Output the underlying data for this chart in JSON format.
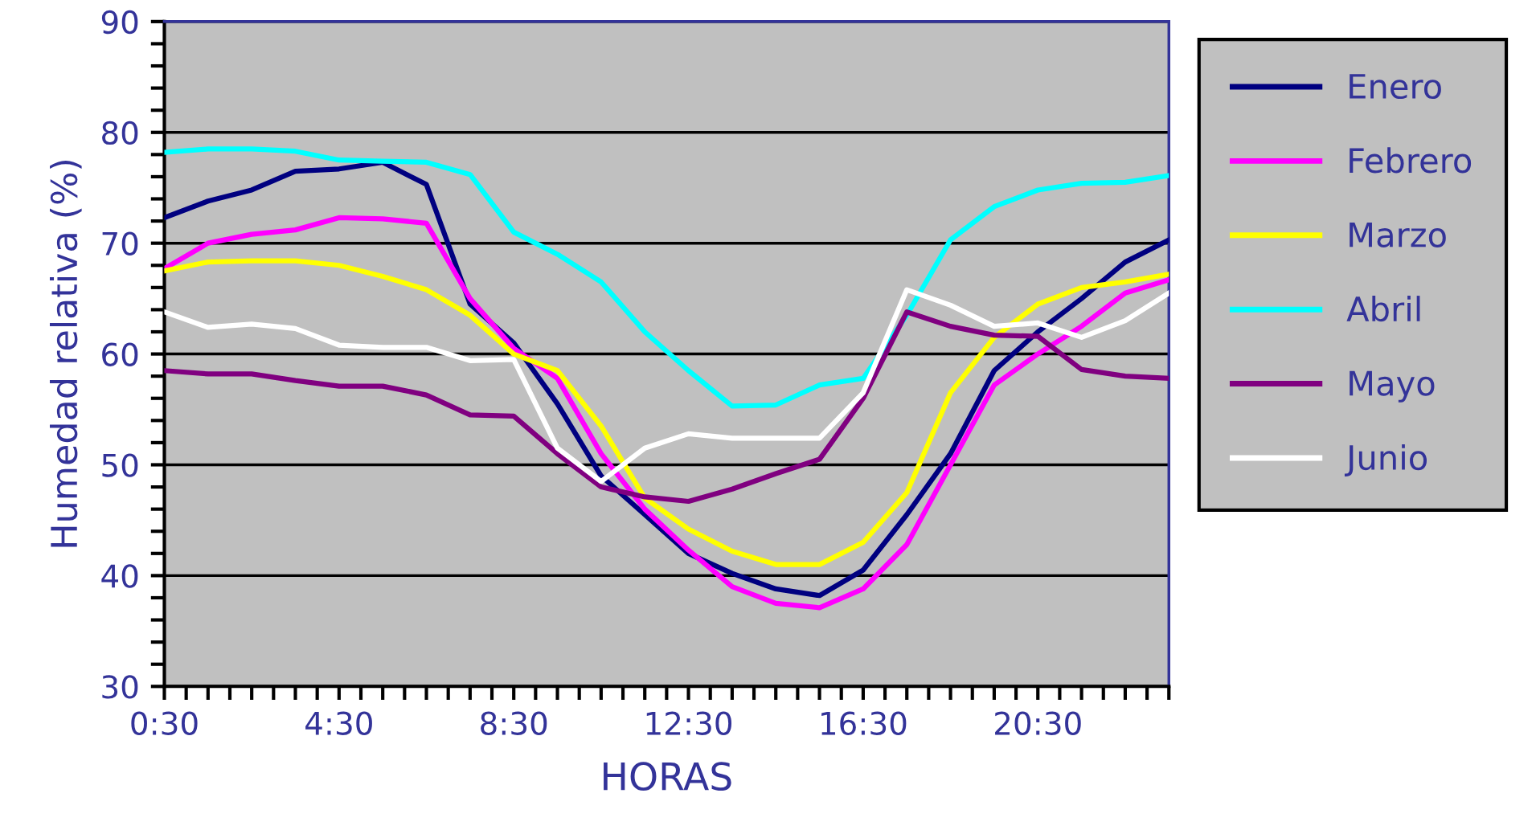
{
  "chart_data": {
    "type": "line",
    "xlabel": "HORAS",
    "ylabel": "Humedad relativa (%)",
    "x": [
      0.5,
      1.5,
      2.5,
      3.5,
      4.5,
      5.5,
      6.5,
      7.5,
      8.5,
      9.5,
      10.5,
      11.5,
      12.5,
      13.5,
      14.5,
      15.5,
      16.5,
      17.5,
      18.5,
      19.5,
      20.5,
      21.5,
      22.5,
      23.5
    ],
    "series": [
      {
        "name": "Enero",
        "color": "#000080",
        "values": [
          72.3,
          73.8,
          74.8,
          76.5,
          76.7,
          77.3,
          75.3,
          64.5,
          61,
          55.5,
          49,
          45.5,
          42,
          40.2,
          38.8,
          38.2,
          40.5,
          45.5,
          51,
          58.5,
          62,
          65,
          68.3,
          70.3
        ]
      },
      {
        "name": "Febrero",
        "color": "#ff00ff",
        "values": [
          67.7,
          70,
          70.8,
          71.2,
          72.3,
          72.2,
          71.8,
          65,
          60.5,
          57.8,
          51,
          46,
          42.3,
          39,
          37.5,
          37.1,
          38.8,
          42.8,
          50,
          57.2,
          60,
          62.5,
          65.5,
          66.7
        ]
      },
      {
        "name": "Marzo",
        "color": "#ffff00",
        "values": [
          67.5,
          68.3,
          68.4,
          68.4,
          68,
          67,
          65.8,
          63.5,
          60,
          58.5,
          53.5,
          47,
          44.2,
          42.2,
          41,
          41,
          43,
          47.5,
          56.5,
          61.5,
          64.5,
          66,
          66.5,
          67.2
        ]
      },
      {
        "name": "Abril",
        "color": "#00ffff",
        "values": [
          78.2,
          78.5,
          78.5,
          78.3,
          77.5,
          77.4,
          77.3,
          76.2,
          71,
          69,
          66.5,
          62,
          58.5,
          55.3,
          55.4,
          57.2,
          57.8,
          63.5,
          70.3,
          73.3,
          74.8,
          75.4,
          75.5,
          76.1
        ]
      },
      {
        "name": "Mayo",
        "color": "#800080",
        "values": [
          58.5,
          58.2,
          58.2,
          57.6,
          57.1,
          57.1,
          56.3,
          54.5,
          54.4,
          51,
          48,
          47.1,
          46.7,
          47.8,
          49.2,
          50.5,
          56,
          63.8,
          62.5,
          61.7,
          61.6,
          58.6,
          58,
          57.8
        ]
      },
      {
        "name": "Junio",
        "color": "#ffffff",
        "values": [
          63.8,
          62.4,
          62.7,
          62.3,
          60.8,
          60.6,
          60.6,
          59.4,
          59.5,
          51.5,
          48.5,
          51.5,
          52.8,
          52.4,
          52.4,
          52.4,
          56.5,
          65.8,
          64.4,
          62.5,
          62.8,
          61.5,
          63,
          65.5
        ]
      }
    ],
    "xlim": [
      0.5,
      23.5
    ],
    "xticks": [
      {
        "value": 0.5,
        "label": "0:30"
      },
      {
        "value": 4.5,
        "label": "4:30"
      },
      {
        "value": 8.5,
        "label": "8:30"
      },
      {
        "value": 12.5,
        "label": "12:30"
      },
      {
        "value": 16.5,
        "label": "16:30"
      },
      {
        "value": 20.5,
        "label": "20:30"
      }
    ],
    "ylim": [
      30,
      90
    ],
    "yticks": [
      30,
      40,
      50,
      60,
      70,
      80,
      90
    ],
    "grid": "y",
    "legend": "right",
    "marker": "none",
    "line_style": "solid"
  }
}
